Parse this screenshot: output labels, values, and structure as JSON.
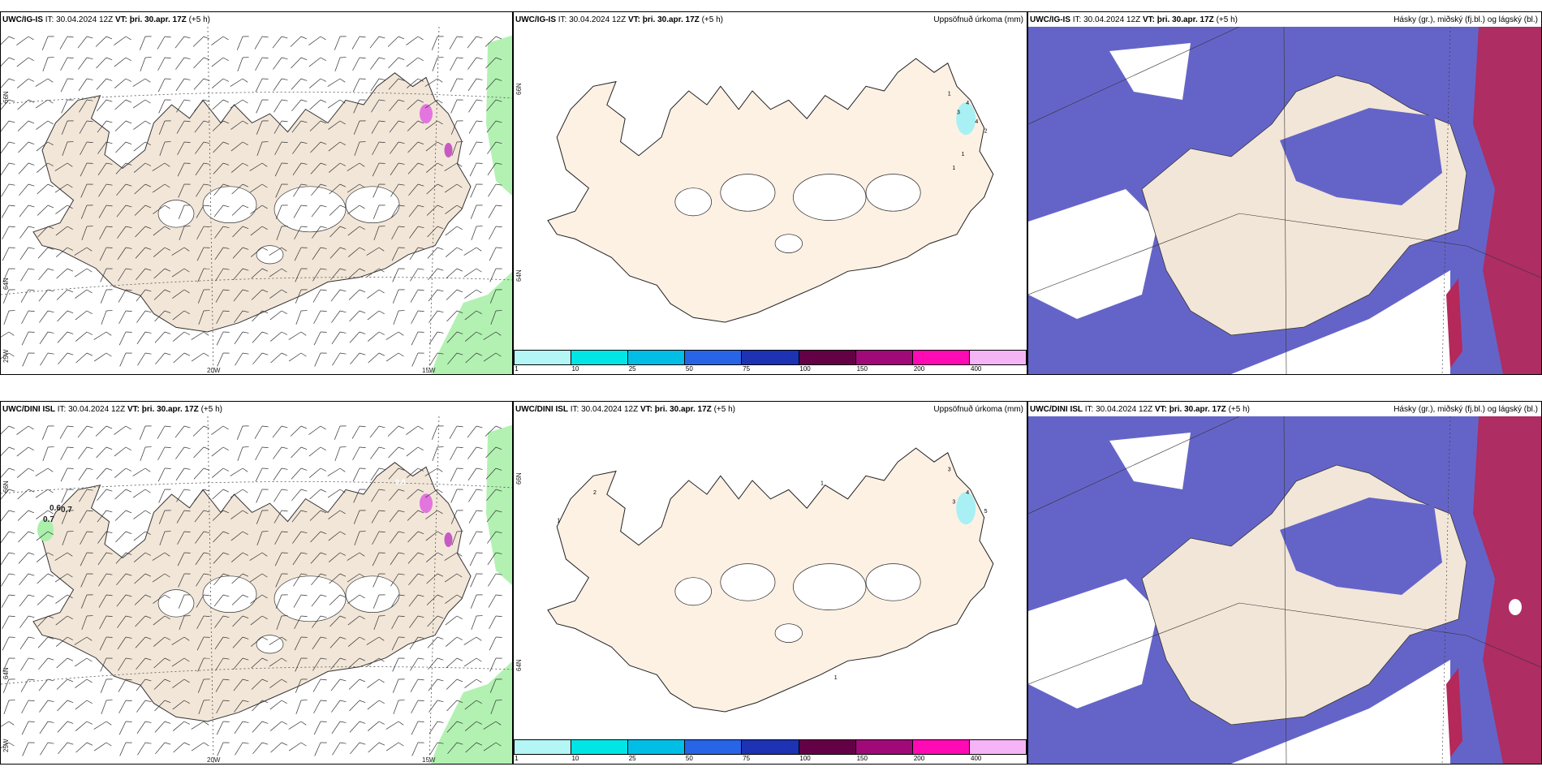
{
  "rows": [
    {
      "model_label": "UWC/IG-IS",
      "wind_panel": {
        "model": "UWC/IG-IS",
        "it_prefix": "IT:",
        "it_value": "30.04.2024 12Z",
        "vt_prefix": "VT:",
        "vt_value": "þri. 30.apr. 17Z",
        "lead": "(+5 h)",
        "lat_labels": [
          "66N",
          "64N",
          "25W"
        ],
        "lon_labels": [
          "20W",
          "15W"
        ]
      },
      "precip_panel": {
        "model": "UWC/IG-IS",
        "it_prefix": "IT:",
        "it_value": "30.04.2024 12Z",
        "vt_prefix": "VT:",
        "vt_value": "þri. 30.apr. 17Z",
        "lead": "(+5 h)",
        "field_title": "Uppsöfnuð úrkoma (mm)",
        "lat_labels": [
          "66N",
          "64N"
        ],
        "point_labels": [
          "1",
          "4",
          "3",
          "4",
          "2",
          "1",
          "1"
        ]
      },
      "cloud_panel": {
        "model": "UWC/IG-IS",
        "it_prefix": "IT:",
        "it_value": "30.04.2024 12Z",
        "vt_prefix": "VT:",
        "vt_value": "þri. 30.apr. 17Z",
        "lead": "(+5 h)",
        "field_title": "Hásky (gr.), miðský (fj.bl.) og lágský (bl.)"
      }
    },
    {
      "model_label": "UWC/DINI ISL",
      "wind_panel": {
        "model": "UWC/DINI ISL",
        "it_prefix": "IT:",
        "it_value": "30.04.2024 12Z",
        "vt_prefix": "VT:",
        "vt_value": "þri. 30.apr. 17Z",
        "lead": "(+5 h)",
        "lat_labels": [
          "66N",
          "64N",
          "25W"
        ],
        "lon_labels": [
          "20W",
          "15W"
        ],
        "point_labels": [
          "0.6",
          "0.7",
          "0.7",
          "0.8"
        ]
      },
      "precip_panel": {
        "model": "UWC/DINI ISL",
        "it_prefix": "IT:",
        "it_value": "30.04.2024 12Z",
        "vt_prefix": "VT:",
        "vt_value": "þri. 30.apr. 17Z",
        "lead": "(+5 h)",
        "field_title": "Uppsöfnuð úrkoma (mm)",
        "lat_labels": [
          "66N",
          "64N"
        ],
        "point_labels": [
          "2",
          "1",
          "1",
          "3",
          "4",
          "3",
          "5",
          "1"
        ]
      },
      "cloud_panel": {
        "model": "UWC/DINI ISL",
        "it_prefix": "IT:",
        "it_value": "30.04.2024 12Z",
        "vt_prefix": "VT:",
        "vt_value": "þri. 30.apr. 17Z",
        "lead": "(+5 h)",
        "field_title": "Hásky (gr.), miðský (fj.bl.) og lágský (bl.)"
      }
    }
  ],
  "precip_colorbar": {
    "ticks": [
      "1",
      "10",
      "25",
      "50",
      "75",
      "100",
      "150",
      "200",
      "400"
    ],
    "colors": [
      "#b4f5f5",
      "#00e6e6",
      "#00bee6",
      "#2864e6",
      "#1e32b4",
      "#640046",
      "#a00a78",
      "#ff0ab4",
      "#f5b4f5"
    ]
  },
  "colors": {
    "land": "#f2e6d8",
    "land_precip": "#fdf1e4",
    "low_cloud": "#6464c8",
    "mid_cloud": "#5a8cf0",
    "high_cloud": "#b4285a",
    "precip_light": "#aaf0aa",
    "precip_blue": "#a0f0f5"
  }
}
